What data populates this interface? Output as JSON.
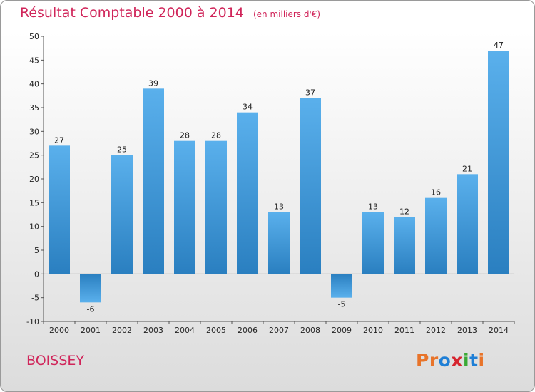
{
  "header": {
    "title": "Résultat Comptable 2000 à 2014",
    "subtitle": "(en milliers d'€)"
  },
  "footer": {
    "town": "BOISSEY",
    "logo_text": "Proxiti",
    "logo_colors": [
      "#e8742a",
      "#e8742a",
      "#1f7fd6",
      "#d6252f",
      "#3aa935",
      "#1f7fd6",
      "#e8742a"
    ]
  },
  "chart_data": {
    "type": "bar",
    "categories": [
      "2000",
      "2001",
      "2002",
      "2003",
      "2004",
      "2005",
      "2006",
      "2007",
      "2008",
      "2009",
      "2010",
      "2011",
      "2012",
      "2013",
      "2014"
    ],
    "values": [
      27,
      -6,
      25,
      39,
      28,
      28,
      34,
      13,
      37,
      -5,
      13,
      12,
      16,
      21,
      47
    ],
    "ylim": [
      -10,
      50
    ],
    "yticks": [
      -10,
      -5,
      0,
      5,
      10,
      15,
      20,
      25,
      30,
      35,
      40,
      45,
      50
    ],
    "grid": false,
    "bar_color_light": "#5ab0ec",
    "bar_color_dark": "#2a7fc0"
  }
}
